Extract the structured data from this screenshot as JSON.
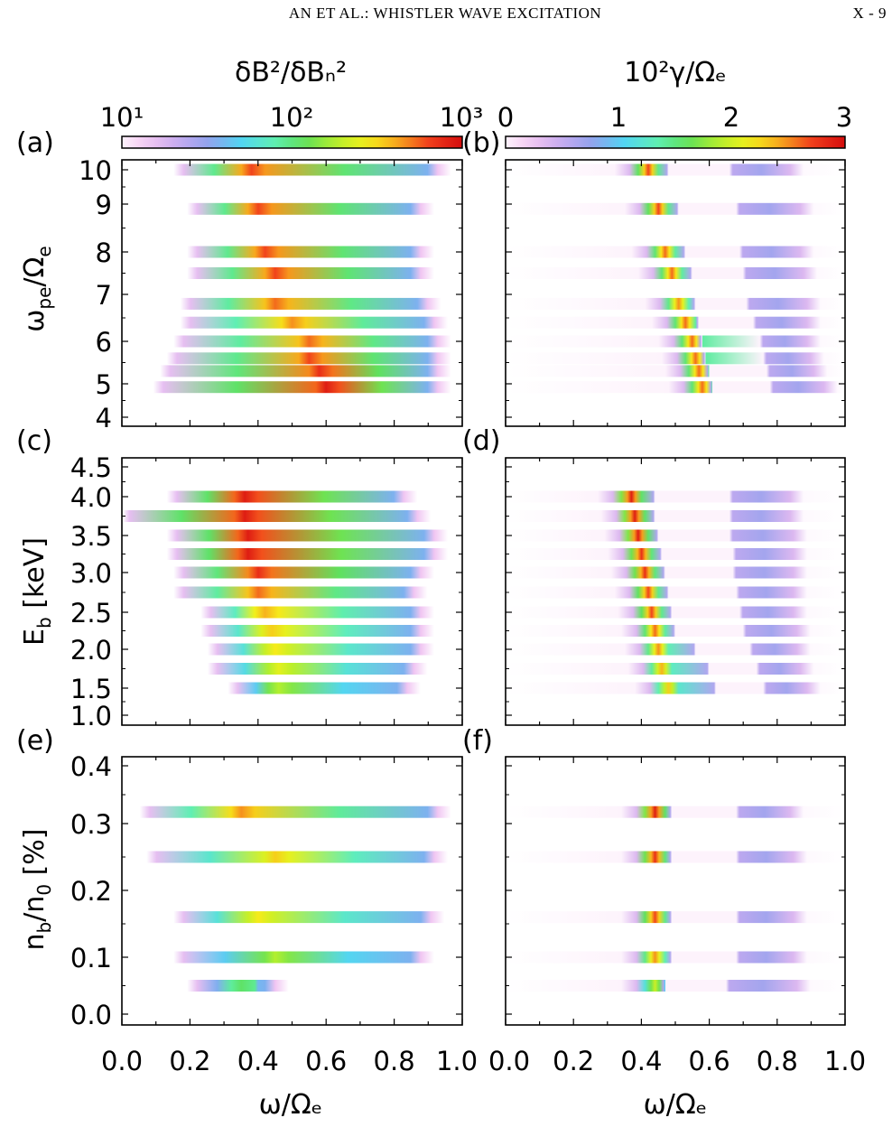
{
  "page_header": {
    "left": "AN ET AL.:  WHISTLER WAVE EXCITATION",
    "right": "X - 9"
  },
  "colorbars": [
    {
      "title": "δB²/δBₙ²",
      "ticks": [
        "10¹",
        "10²",
        "10³"
      ],
      "scale": "log"
    },
    {
      "title": "10²γ/Ωₑ",
      "ticks": [
        "0",
        "1",
        "2",
        "3"
      ],
      "scale": "linear"
    }
  ],
  "colormap": [
    "#ffffff",
    "#f4c8f2",
    "#c7aaef",
    "#8fa2ee",
    "#52d5f2",
    "#5ff0b7",
    "#5fe05a",
    "#b6ef2c",
    "#f6f01a",
    "#f7a21d",
    "#f0391c",
    "#d40d0d"
  ],
  "x_axis": {
    "label": "ω/Ωₑ",
    "ticks": [
      "0.0",
      "0.2",
      "0.4",
      "0.6",
      "0.8",
      "1.0"
    ],
    "range": [
      0,
      1
    ]
  },
  "rows": [
    {
      "ylabel": "ωpe/Ωe",
      "ylabel_main": "ω",
      "ylabel_sub": "pe",
      "ylabel_mid": "/Ω",
      "ylabel_sub2": "e",
      "ylabel_post": "",
      "yticks": [
        "4",
        "5",
        "6",
        "7",
        "8",
        "9",
        "10"
      ],
      "ylim": [
        4,
        10
      ]
    },
    {
      "ylabel": "Eb [keV]",
      "ylabel_main": "E",
      "ylabel_sub": "b",
      "ylabel_mid": " [keV]",
      "ylabel_sub2": "",
      "ylabel_post": "",
      "yticks": [
        "1.0",
        "1.5",
        "2.0",
        "2.5",
        "3.0",
        "3.5",
        "4.0",
        "4.5"
      ],
      "ylim": [
        1.0,
        4.5
      ]
    },
    {
      "ylabel": "nb/n0 [%]",
      "ylabel_main": "n",
      "ylabel_sub": "b",
      "ylabel_mid": "/n",
      "ylabel_sub2": "0",
      "ylabel_post": " [%]",
      "yticks": [
        "0.0",
        "0.1",
        "0.2",
        "0.3",
        "0.4"
      ],
      "ylim": [
        0.0,
        0.4
      ]
    }
  ],
  "chart_data": [
    {
      "panel": "(a)",
      "type": "heatmap",
      "quantity": "δB²/δBₙ²",
      "colorscale": "log",
      "clim": [
        10,
        1000
      ],
      "xlabel": "ω/Ωₑ",
      "ylabel": "ωpe/Ωe",
      "xlim": [
        0,
        1
      ],
      "ylim": [
        4,
        10
      ],
      "bands": [
        {
          "y": 10.0,
          "x_start": 0.18,
          "x_end": 0.93,
          "peak_x": 0.38,
          "peak": 2.7
        },
        {
          "y": 8.9,
          "x_start": 0.22,
          "x_end": 0.88,
          "peak_x": 0.4,
          "peak": 2.7
        },
        {
          "y": 8.0,
          "x_start": 0.22,
          "x_end": 0.88,
          "peak_x": 0.42,
          "peak": 2.7
        },
        {
          "y": 7.5,
          "x_start": 0.22,
          "x_end": 0.88,
          "peak_x": 0.45,
          "peak": 2.7
        },
        {
          "y": 6.8,
          "x_start": 0.2,
          "x_end": 0.9,
          "peak_x": 0.45,
          "peak": 2.6
        },
        {
          "y": 6.4,
          "x_start": 0.2,
          "x_end": 0.92,
          "peak_x": 0.5,
          "peak": 2.5
        },
        {
          "y": 6.0,
          "x_start": 0.18,
          "x_end": 0.93,
          "peak_x": 0.55,
          "peak": 2.6
        },
        {
          "y": 5.6,
          "x_start": 0.16,
          "x_end": 0.93,
          "peak_x": 0.55,
          "peak": 2.7
        },
        {
          "y": 5.3,
          "x_start": 0.14,
          "x_end": 0.93,
          "peak_x": 0.58,
          "peak": 2.8
        },
        {
          "y": 4.9,
          "x_start": 0.12,
          "x_end": 0.93,
          "peak_x": 0.6,
          "peak": 2.9
        }
      ]
    },
    {
      "panel": "(b)",
      "type": "heatmap",
      "quantity": "10²γ/Ωₑ",
      "colorscale": "linear",
      "clim": [
        0,
        3
      ],
      "xlabel": "ω/Ωₑ",
      "ylabel": "ωpe/Ωe",
      "xlim": [
        0,
        1
      ],
      "ylim": [
        4,
        10
      ],
      "bands": [
        {
          "y": 10.0,
          "peak_x": 0.42,
          "peak": 2.7,
          "gap": [
            0.48,
            0.66
          ],
          "second_end": 0.85
        },
        {
          "y": 8.9,
          "peak_x": 0.45,
          "peak": 2.7,
          "gap": [
            0.51,
            0.68
          ],
          "second_end": 0.88
        },
        {
          "y": 8.0,
          "peak_x": 0.47,
          "peak": 2.6,
          "gap": [
            0.53,
            0.69
          ],
          "second_end": 0.88
        },
        {
          "y": 7.5,
          "peak_x": 0.49,
          "peak": 2.6,
          "gap": [
            0.55,
            0.7
          ],
          "second_end": 0.89
        },
        {
          "y": 6.8,
          "peak_x": 0.51,
          "peak": 2.5,
          "gap": [
            0.56,
            0.71
          ],
          "second_end": 0.9
        },
        {
          "y": 6.4,
          "peak_x": 0.53,
          "peak": 2.6,
          "gap": [
            0.57,
            0.73
          ],
          "second_end": 0.9
        },
        {
          "y": 6.0,
          "peak_x": 0.55,
          "peak": 2.6,
          "gap": [
            0.58,
            0.75
          ],
          "second_end": 0.9
        },
        {
          "y": 5.6,
          "peak_x": 0.56,
          "peak": 2.6,
          "gap": [
            0.59,
            0.76
          ],
          "second_end": 0.91
        },
        {
          "y": 5.3,
          "peak_x": 0.57,
          "peak": 2.6,
          "gap": [
            0.6,
            0.77
          ],
          "second_end": 0.92
        },
        {
          "y": 4.9,
          "peak_x": 0.58,
          "peak": 2.6,
          "gap": [
            0.61,
            0.78
          ],
          "second_end": 0.95
        }
      ]
    },
    {
      "panel": "(c)",
      "type": "heatmap",
      "quantity": "δB²/δBₙ²",
      "colorscale": "log",
      "clim": [
        10,
        1000
      ],
      "xlabel": "ω/Ωₑ",
      "ylabel": "Eb [keV]",
      "xlim": [
        0,
        1
      ],
      "ylim": [
        1.0,
        4.5
      ],
      "bands": [
        {
          "y": 4.0,
          "x_start": 0.16,
          "x_end": 0.83,
          "peak_x": 0.36,
          "peak": 2.9
        },
        {
          "y": 3.75,
          "x_start": 0.02,
          "x_end": 0.87,
          "peak_x": 0.36,
          "peak": 2.9
        },
        {
          "y": 3.5,
          "x_start": 0.16,
          "x_end": 0.92,
          "peak_x": 0.37,
          "peak": 2.9
        },
        {
          "y": 3.25,
          "x_start": 0.16,
          "x_end": 0.92,
          "peak_x": 0.37,
          "peak": 2.9
        },
        {
          "y": 3.0,
          "x_start": 0.18,
          "x_end": 0.88,
          "peak_x": 0.4,
          "peak": 2.8
        },
        {
          "y": 2.75,
          "x_start": 0.18,
          "x_end": 0.86,
          "peak_x": 0.4,
          "peak": 2.6
        },
        {
          "y": 2.5,
          "x_start": 0.26,
          "x_end": 0.88,
          "peak_x": 0.42,
          "peak": 2.4
        },
        {
          "y": 2.25,
          "x_start": 0.26,
          "x_end": 0.88,
          "peak_x": 0.44,
          "peak": 2.3
        },
        {
          "y": 2.0,
          "x_start": 0.28,
          "x_end": 0.88,
          "peak_x": 0.45,
          "peak": 2.2
        },
        {
          "y": 1.75,
          "x_start": 0.28,
          "x_end": 0.86,
          "peak_x": 0.46,
          "peak": 2.1
        },
        {
          "y": 1.5,
          "x_start": 0.34,
          "x_end": 0.84,
          "peak_x": 0.46,
          "peak": 1.9
        }
      ]
    },
    {
      "panel": "(d)",
      "type": "heatmap",
      "quantity": "10²γ/Ωₑ",
      "colorscale": "linear",
      "clim": [
        0,
        3
      ],
      "xlabel": "ω/Ωₑ",
      "ylabel": "Eb [keV]",
      "xlim": [
        0,
        1
      ],
      "ylim": [
        1.0,
        4.5
      ],
      "bands": [
        {
          "y": 4.0,
          "peak_x": 0.37,
          "peak": 2.9,
          "gap": [
            0.44,
            0.66
          ],
          "second_end": 0.85
        },
        {
          "y": 3.75,
          "peak_x": 0.38,
          "peak": 2.9,
          "gap": [
            0.44,
            0.66
          ],
          "second_end": 0.85
        },
        {
          "y": 3.5,
          "peak_x": 0.39,
          "peak": 2.9,
          "gap": [
            0.45,
            0.66
          ],
          "second_end": 0.86
        },
        {
          "y": 3.25,
          "peak_x": 0.4,
          "peak": 2.8,
          "gap": [
            0.46,
            0.67
          ],
          "second_end": 0.86
        },
        {
          "y": 3.0,
          "peak_x": 0.41,
          "peak": 2.8,
          "gap": [
            0.47,
            0.67
          ],
          "second_end": 0.86
        },
        {
          "y": 2.75,
          "peak_x": 0.42,
          "peak": 2.7,
          "gap": [
            0.48,
            0.68
          ],
          "second_end": 0.86
        },
        {
          "y": 2.5,
          "peak_x": 0.43,
          "peak": 2.7,
          "gap": [
            0.49,
            0.69
          ],
          "second_end": 0.86
        },
        {
          "y": 2.25,
          "peak_x": 0.44,
          "peak": 2.6,
          "gap": [
            0.5,
            0.7
          ],
          "second_end": 0.87
        },
        {
          "y": 2.0,
          "peak_x": 0.45,
          "peak": 2.5,
          "gap": [
            0.56,
            0.72
          ],
          "second_end": 0.87
        },
        {
          "y": 1.75,
          "peak_x": 0.46,
          "peak": 2.4,
          "gap": [
            0.6,
            0.74
          ],
          "second_end": 0.88
        },
        {
          "y": 1.5,
          "peak_x": 0.48,
          "peak": 2.3,
          "gap": [
            0.62,
            0.76
          ],
          "second_end": 0.9
        }
      ]
    },
    {
      "panel": "(e)",
      "type": "heatmap",
      "quantity": "δB²/δBₙ²",
      "colorscale": "log",
      "clim": [
        10,
        1000
      ],
      "xlabel": "ω/Ωₑ",
      "ylabel": "nb/n0 [%]",
      "xlim": [
        0,
        1
      ],
      "ylim": [
        0.0,
        0.4
      ],
      "bands": [
        {
          "y": 0.32,
          "x_start": 0.08,
          "x_end": 0.93,
          "peak_x": 0.35,
          "peak": 2.5
        },
        {
          "y": 0.25,
          "x_start": 0.1,
          "x_end": 0.92,
          "peak_x": 0.45,
          "peak": 2.3
        },
        {
          "y": 0.16,
          "x_start": 0.18,
          "x_end": 0.91,
          "peak_x": 0.4,
          "peak": 2.2
        },
        {
          "y": 0.1,
          "x_start": 0.18,
          "x_end": 0.88,
          "peak_x": 0.45,
          "peak": 1.9
        },
        {
          "y": 0.05,
          "x_start": 0.22,
          "x_end": 0.45,
          "peak_x": 0.35,
          "peak": 1.6
        }
      ]
    },
    {
      "panel": "(f)",
      "type": "heatmap",
      "quantity": "10²γ/Ωₑ",
      "colorscale": "linear",
      "clim": [
        0,
        3
      ],
      "xlabel": "ω/Ωₑ",
      "ylabel": "nb/n0 [%]",
      "xlim": [
        0,
        1
      ],
      "ylim": [
        0.0,
        0.4
      ],
      "bands": [
        {
          "y": 0.32,
          "peak_x": 0.44,
          "peak": 2.9,
          "gap": [
            0.49,
            0.68
          ],
          "second_end": 0.85
        },
        {
          "y": 0.25,
          "peak_x": 0.44,
          "peak": 2.8,
          "gap": [
            0.49,
            0.68
          ],
          "second_end": 0.86
        },
        {
          "y": 0.16,
          "peak_x": 0.44,
          "peak": 2.7,
          "gap": [
            0.49,
            0.68
          ],
          "second_end": 0.86
        },
        {
          "y": 0.1,
          "peak_x": 0.44,
          "peak": 2.5,
          "gap": [
            0.49,
            0.68
          ],
          "second_end": 0.86
        },
        {
          "y": 0.05,
          "peak_x": 0.44,
          "peak": 2.0,
          "gap": [
            0.47,
            0.65
          ],
          "second_end": 0.87
        }
      ]
    }
  ]
}
